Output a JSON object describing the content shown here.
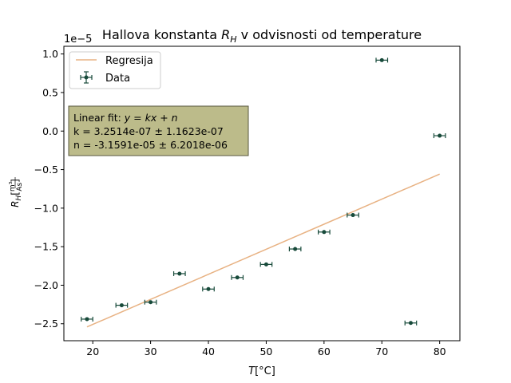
{
  "chart_data": {
    "type": "scatter",
    "title": "Hallova konstanta R_H v odvisnosti od temperature",
    "title_parts": {
      "main": "Hallova konstanta ",
      "var": "R",
      "sub": "H",
      "rest": " v odvisnosti od temperature"
    },
    "xlabel": "T[°C]",
    "xlabel_parts": {
      "var": "T",
      "unit": "[°C]"
    },
    "ylabel": "R_H[m³/As]",
    "y_offset_label": "1e−5",
    "xlim": [
      15,
      83.5
    ],
    "ylim": [
      -2.72e-05,
      1.1e-05
    ],
    "x_ticks": [
      20,
      30,
      40,
      50,
      60,
      70,
      80
    ],
    "x_tick_labels": [
      "20",
      "30",
      "40",
      "50",
      "60",
      "70",
      "80"
    ],
    "y_ticks": [
      1e-05,
      5e-06,
      0.0,
      -5e-06,
      -1e-05,
      -1.5e-05,
      -2e-05,
      -2.5e-05
    ],
    "y_tick_labels": [
      "1.0",
      "0.5",
      "0.0",
      "−0.5",
      "−1.0",
      "−1.5",
      "−2.0",
      "−2.5"
    ],
    "grid": false,
    "legend_position": "top-left",
    "series": [
      {
        "name": "Data",
        "kind": "errorbar",
        "color": "#174a3a",
        "x": [
          19,
          25,
          30,
          35,
          40,
          45,
          50,
          55,
          60,
          65,
          70,
          75,
          80
        ],
        "y": [
          -2.44e-05,
          -2.26e-05,
          -2.22e-05,
          -1.85e-05,
          -2.05e-05,
          -1.9e-05,
          -1.73e-05,
          -1.53e-05,
          -1.31e-05,
          -1.09e-05,
          9.2e-06,
          -2.49e-05,
          -6e-07
        ],
        "x_err": 1.0
      },
      {
        "name": "Regresija",
        "kind": "line",
        "color": "#e8b283",
        "x": [
          19,
          80
        ],
        "y": [
          -2.5414e-05,
          -5.58e-06
        ]
      }
    ],
    "annotation": {
      "line1_prefix": "Linear fit: ",
      "line1_formula": "y = kx + n",
      "line2": "k = 3.2514e-07 ± 1.1623e-07",
      "line3": "n = -3.1591e-05 ± 6.2018e-06",
      "background": "#bcbb8a"
    }
  }
}
